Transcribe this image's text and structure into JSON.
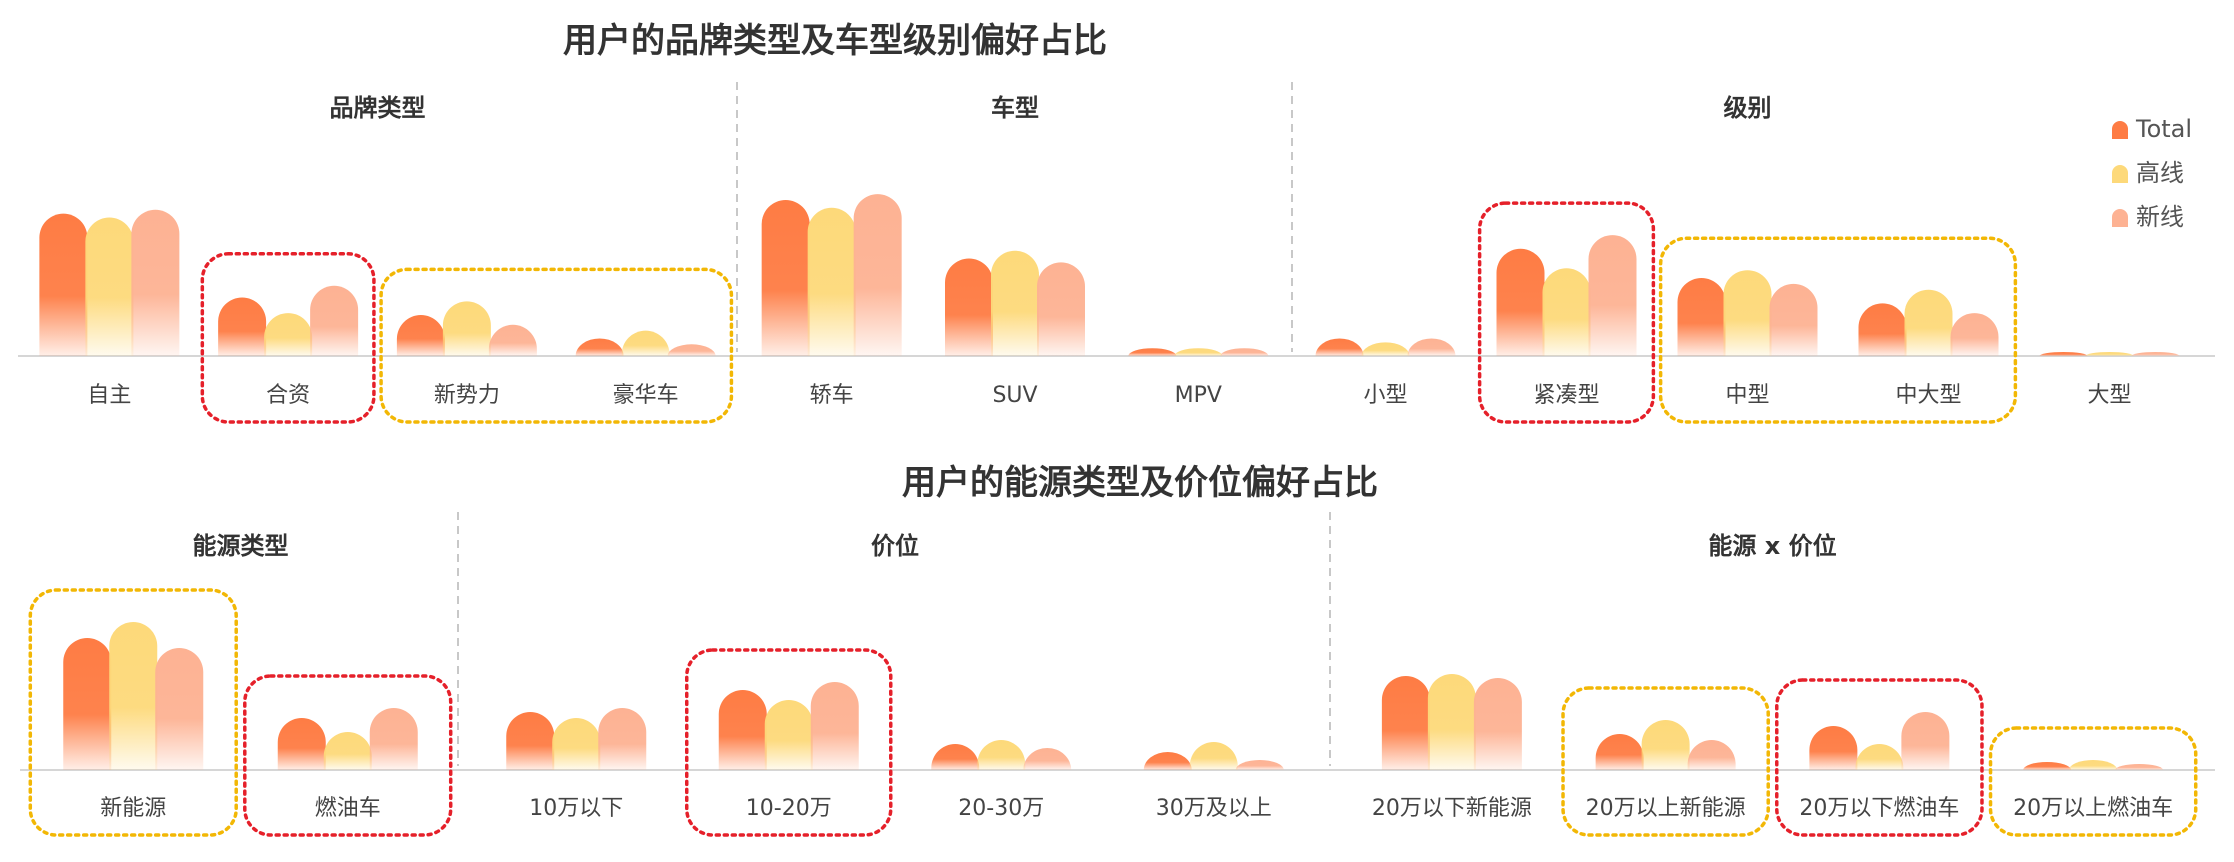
{
  "colors": {
    "total": "#fe7c44",
    "high": "#fdd97a",
    "new": "#fdb293",
    "highlight_red": "#e5202a",
    "highlight_yellow": "#f2b705",
    "divider": "#c8c8c8",
    "baseline": "#d6d6d6"
  },
  "legend": [
    "Total",
    "高线",
    "新线"
  ],
  "chart_data": [
    {
      "type": "bar",
      "title": "用户的品牌类型及车型级别偏好占比",
      "groups": [
        {
          "name": "品牌类型",
          "categories": [
            "自主",
            "合资",
            "新势力",
            "豪华车"
          ],
          "series": [
            {
              "name": "Total",
              "values": [
                0.73,
                0.3,
                0.21,
                0.09
              ]
            },
            {
              "name": "高线",
              "values": [
                0.71,
                0.22,
                0.28,
                0.13
              ]
            },
            {
              "name": "新线",
              "values": [
                0.75,
                0.36,
                0.16,
                0.06
              ]
            }
          ],
          "highlights": [
            {
              "from": 1,
              "to": 1,
              "color": "red"
            },
            {
              "from": 2,
              "to": 3,
              "color": "yellow"
            }
          ]
        },
        {
          "name": "车型",
          "categories": [
            "轿车",
            "SUV",
            "MPV"
          ],
          "series": [
            {
              "name": "Total",
              "values": [
                0.8,
                0.5,
                0.04
              ]
            },
            {
              "name": "高线",
              "values": [
                0.76,
                0.54,
                0.04
              ]
            },
            {
              "name": "新线",
              "values": [
                0.83,
                0.48,
                0.04
              ]
            }
          ],
          "highlights": []
        },
        {
          "name": "级别",
          "categories": [
            "小型",
            "紧凑型",
            "中型",
            "中大型",
            "大型"
          ],
          "series": [
            {
              "name": "Total",
              "values": [
                0.09,
                0.55,
                0.4,
                0.27,
                0.02
              ]
            },
            {
              "name": "高线",
              "values": [
                0.07,
                0.45,
                0.44,
                0.34,
                0.02
              ]
            },
            {
              "name": "新线",
              "values": [
                0.09,
                0.62,
                0.37,
                0.22,
                0.02
              ]
            }
          ],
          "highlights": [
            {
              "from": 1,
              "to": 1,
              "color": "red"
            },
            {
              "from": 2,
              "to": 3,
              "color": "yellow"
            }
          ]
        }
      ]
    },
    {
      "type": "bar",
      "title": "用户的能源类型及价位偏好占比",
      "groups": [
        {
          "name": "能源类型",
          "categories": [
            "新能源",
            "燃油车"
          ],
          "series": [
            {
              "name": "Total",
              "values": [
                0.66,
                0.26
              ]
            },
            {
              "name": "高线",
              "values": [
                0.74,
                0.19
              ]
            },
            {
              "name": "新线",
              "values": [
                0.61,
                0.31
              ]
            }
          ],
          "highlights": [
            {
              "from": 0,
              "to": 0,
              "color": "yellow"
            },
            {
              "from": 1,
              "to": 1,
              "color": "red"
            }
          ]
        },
        {
          "name": "价位",
          "categories": [
            "10万以下",
            "10-20万",
            "20-30万",
            "30万及以上"
          ],
          "series": [
            {
              "name": "Total",
              "values": [
                0.29,
                0.4,
                0.13,
                0.09
              ]
            },
            {
              "name": "高线",
              "values": [
                0.26,
                0.35,
                0.15,
                0.14
              ]
            },
            {
              "name": "新线",
              "values": [
                0.31,
                0.44,
                0.11,
                0.05
              ]
            }
          ],
          "highlights": [
            {
              "from": 1,
              "to": 1,
              "color": "red"
            }
          ]
        },
        {
          "name": "能源 x 价位",
          "categories": [
            "20万以下新能源",
            "20万以上新能源",
            "20万以下燃油车",
            "20万以上燃油车"
          ],
          "series": [
            {
              "name": "Total",
              "values": [
                0.47,
                0.18,
                0.22,
                0.04
              ]
            },
            {
              "name": "高线",
              "values": [
                0.48,
                0.25,
                0.13,
                0.05
              ]
            },
            {
              "name": "新线",
              "values": [
                0.46,
                0.15,
                0.29,
                0.03
              ]
            }
          ],
          "highlights": [
            {
              "from": 1,
              "to": 1,
              "color": "yellow"
            },
            {
              "from": 2,
              "to": 2,
              "color": "red"
            },
            {
              "from": 3,
              "to": 3,
              "color": "yellow"
            }
          ]
        }
      ]
    }
  ]
}
